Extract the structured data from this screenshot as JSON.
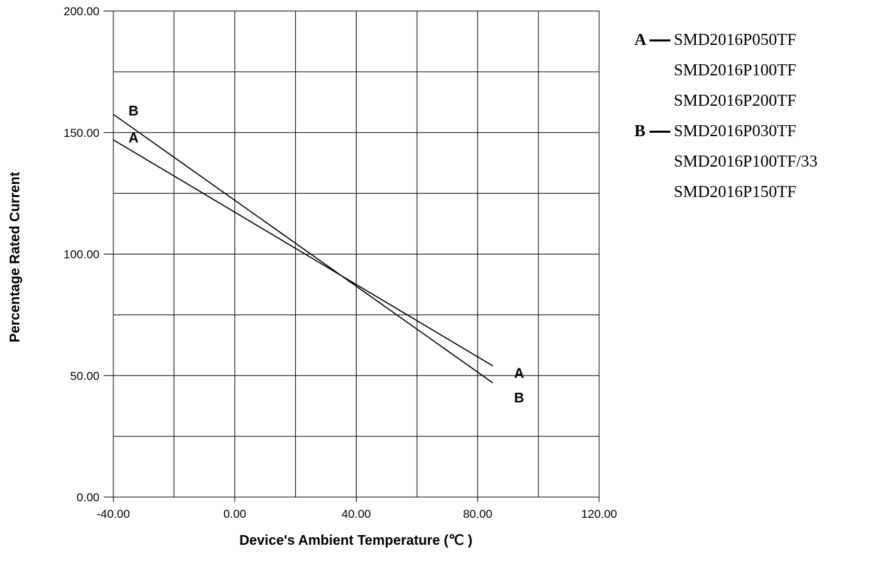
{
  "chart_data": {
    "type": "line",
    "xlabel": "Device's Ambient Temperature (℃ )",
    "ylabel": "Percentage Rated Current",
    "xlim": [
      -40,
      120
    ],
    "ylim": [
      0,
      200
    ],
    "x_ticks": [
      "-40.00",
      "0.00",
      "40.00",
      "80.00",
      "120.00"
    ],
    "y_ticks": [
      "0.00",
      "50.00",
      "100.00",
      "150.00",
      "200.00"
    ],
    "x_tick_values": [
      -40,
      0,
      40,
      80,
      120
    ],
    "y_tick_values": [
      0,
      50,
      100,
      150,
      200
    ],
    "grid": true,
    "x_gridlines": [
      -20,
      0,
      20,
      40,
      60,
      80,
      100
    ],
    "y_gridlines": [
      25,
      50,
      75,
      100,
      125,
      150,
      175
    ],
    "series": [
      {
        "name": "A",
        "x": [
          -40,
          85
        ],
        "y": [
          147,
          54
        ]
      },
      {
        "name": "B",
        "x": [
          -40,
          85
        ],
        "y": [
          157.5,
          47
        ]
      }
    ],
    "series_labels": [
      {
        "text": "B",
        "x": -35,
        "y": 159
      },
      {
        "text": "A",
        "x": -35,
        "y": 148
      },
      {
        "text": "A",
        "x": 92,
        "y": 51
      },
      {
        "text": "B",
        "x": 92,
        "y": 41
      }
    ],
    "legend": {
      "placement": "right",
      "groups": [
        {
          "key": "A",
          "items": [
            "SMD2016P050TF",
            "SMD2016P100TF",
            "SMD2016P200TF"
          ]
        },
        {
          "key": "B",
          "items": [
            "SMD2016P030TF",
            "SMD2016P100TF/33",
            "SMD2016P150TF"
          ]
        }
      ]
    }
  }
}
